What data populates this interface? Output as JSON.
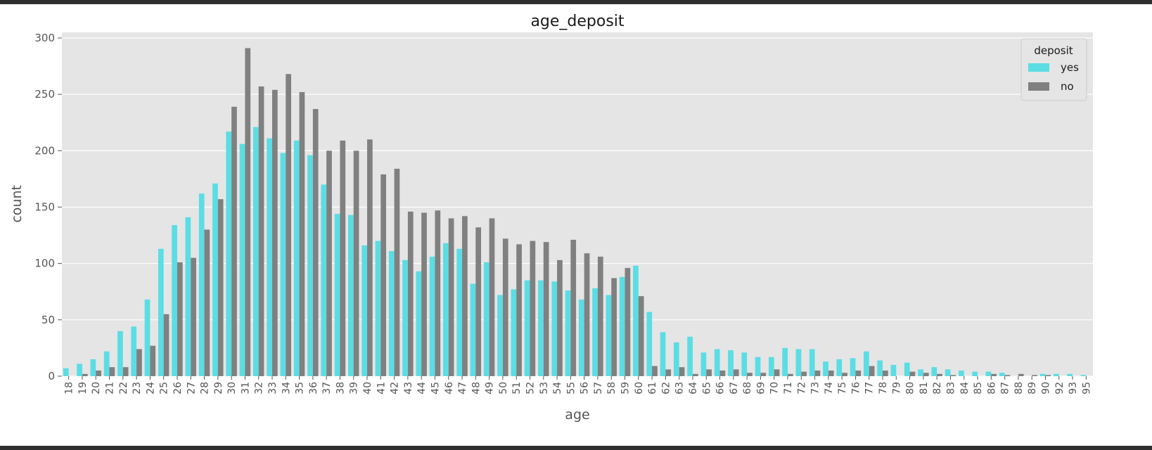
{
  "chart_data": {
    "type": "bar",
    "title": "age_deposit",
    "xlabel": "age",
    "ylabel": "count",
    "ylim": [
      0,
      305
    ],
    "yticks": [
      0,
      50,
      100,
      150,
      200,
      250,
      300
    ],
    "grid": true,
    "legend": {
      "title": "deposit",
      "placement": "top-right"
    },
    "categories": [
      "18",
      "19",
      "20",
      "21",
      "22",
      "23",
      "24",
      "25",
      "26",
      "27",
      "28",
      "29",
      "30",
      "31",
      "32",
      "33",
      "34",
      "35",
      "36",
      "37",
      "38",
      "39",
      "40",
      "41",
      "42",
      "43",
      "44",
      "45",
      "46",
      "47",
      "48",
      "49",
      "50",
      "51",
      "52",
      "53",
      "54",
      "55",
      "56",
      "57",
      "58",
      "59",
      "60",
      "61",
      "62",
      "63",
      "64",
      "65",
      "66",
      "67",
      "68",
      "69",
      "70",
      "71",
      "72",
      "73",
      "74",
      "75",
      "76",
      "77",
      "78",
      "79",
      "80",
      "81",
      "82",
      "83",
      "84",
      "85",
      "86",
      "87",
      "88",
      "89",
      "90",
      "92",
      "93",
      "95"
    ],
    "series": [
      {
        "name": "yes",
        "color": "#5bdde4",
        "values": [
          7,
          11,
          15,
          22,
          40,
          44,
          68,
          113,
          134,
          141,
          162,
          171,
          217,
          206,
          221,
          211,
          198,
          209,
          196,
          170,
          144,
          143,
          116,
          120,
          111,
          103,
          93,
          106,
          118,
          113,
          82,
          101,
          72,
          77,
          85,
          85,
          84,
          76,
          68,
          78,
          72,
          88,
          98,
          57,
          39,
          30,
          35,
          21,
          24,
          23,
          21,
          17,
          17,
          25,
          24,
          24,
          13,
          15,
          16,
          22,
          14,
          10,
          12,
          6,
          8,
          6,
          5,
          4,
          4,
          3,
          0,
          0,
          2,
          2,
          2,
          1
        ]
      },
      {
        "name": "no",
        "color": "#808080",
        "values": [
          0,
          2,
          5,
          8,
          8,
          24,
          27,
          55,
          101,
          105,
          130,
          157,
          239,
          291,
          257,
          254,
          268,
          252,
          237,
          200,
          209,
          200,
          210,
          179,
          184,
          146,
          145,
          147,
          140,
          142,
          132,
          140,
          122,
          117,
          120,
          119,
          103,
          121,
          109,
          106,
          87,
          96,
          71,
          9,
          6,
          8,
          2,
          6,
          5,
          6,
          3,
          3,
          6,
          2,
          4,
          5,
          5,
          3,
          5,
          9,
          5,
          0,
          4,
          3,
          2,
          1,
          0,
          0,
          2,
          1,
          2,
          1,
          1,
          0,
          0,
          0
        ]
      }
    ]
  }
}
